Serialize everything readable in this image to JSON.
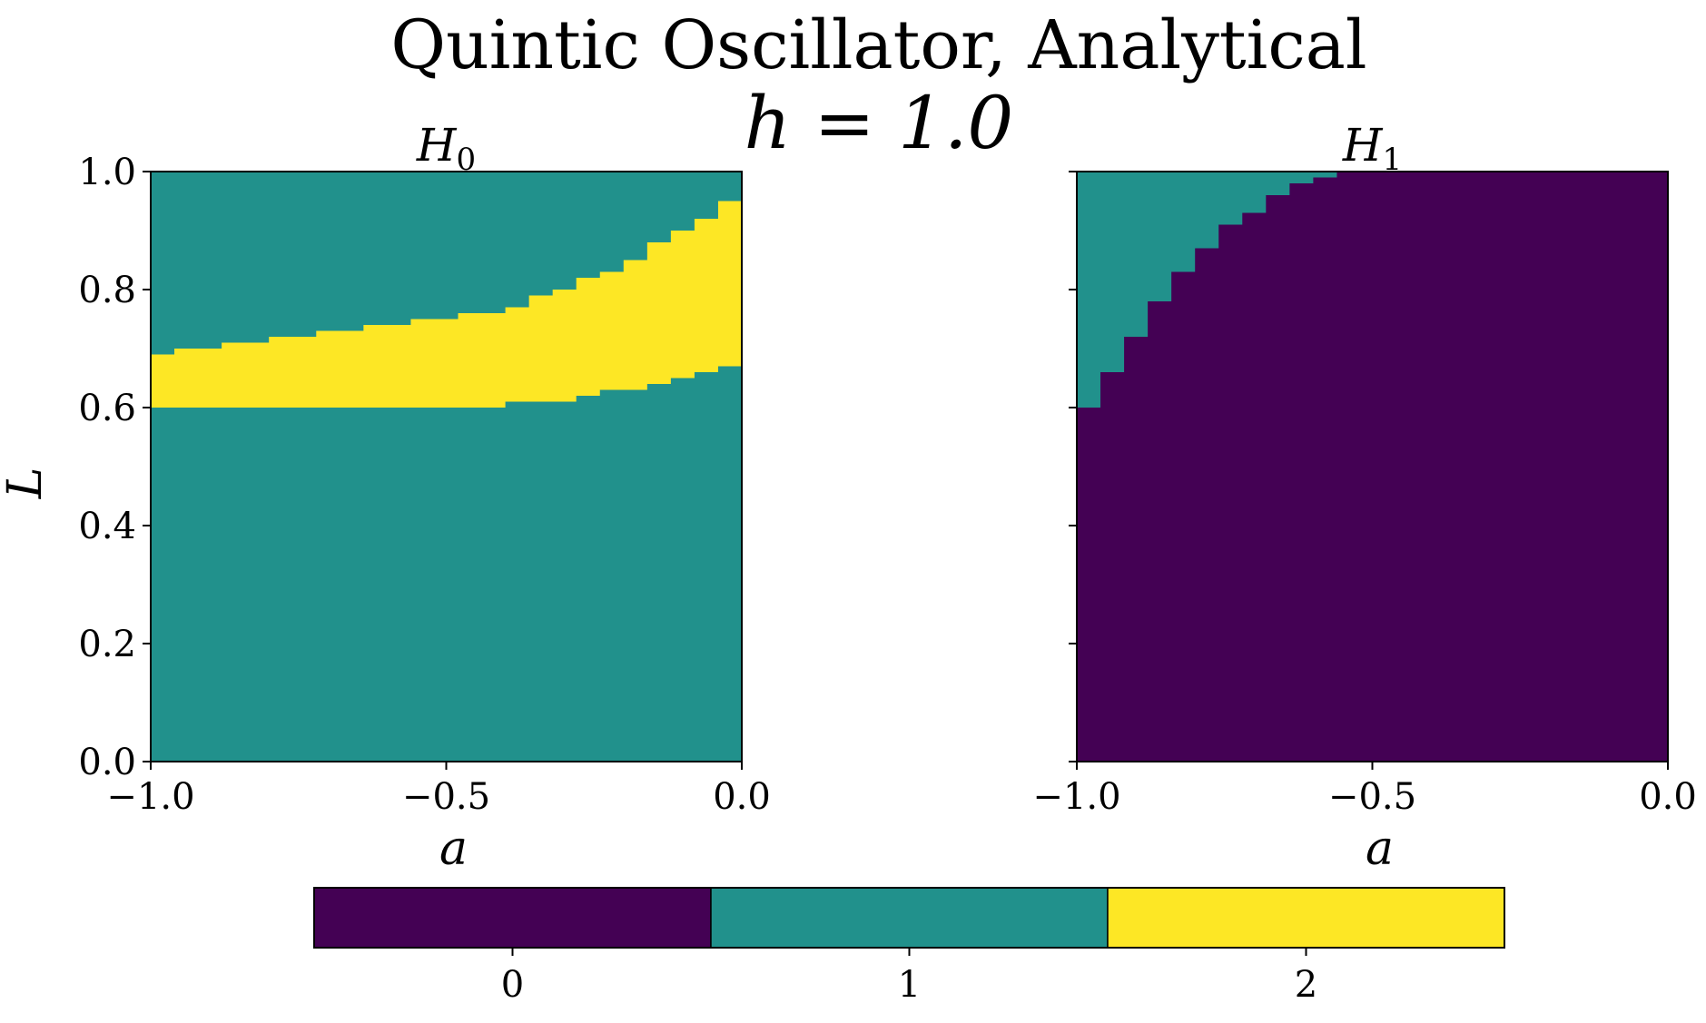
{
  "figure": {
    "title_line1": "Quintic Oscillator, Analytical",
    "title_line2": "h = 1.0"
  },
  "colors": {
    "0": "#440154",
    "1": "#21918c",
    "2": "#fde725"
  },
  "chart_data": [
    {
      "type": "heatmap",
      "title_main": "H",
      "title_sub": "0",
      "xlabel": "a",
      "ylabel": "L",
      "xlim": [
        -1.0,
        0.0
      ],
      "ylim": [
        0.0,
        1.0
      ],
      "xticks": [
        "−1.0",
        "−0.5",
        "0.0"
      ],
      "yticks": [
        "0.0",
        "0.2",
        "0.4",
        "0.6",
        "0.8",
        "1.0"
      ],
      "grid": false,
      "background_value": 1,
      "bands": [
        {
          "value": 2,
          "a": [
            -1.0,
            -0.96,
            -0.92,
            -0.88,
            -0.84,
            -0.8,
            -0.76,
            -0.72,
            -0.68,
            -0.64,
            -0.6,
            -0.56,
            -0.52,
            -0.48,
            -0.44,
            -0.4,
            -0.36,
            -0.32,
            -0.28,
            -0.24,
            -0.2,
            -0.16,
            -0.12,
            -0.08,
            -0.04
          ],
          "L_lower": [
            0.6,
            0.6,
            0.6,
            0.6,
            0.6,
            0.6,
            0.6,
            0.6,
            0.6,
            0.6,
            0.6,
            0.6,
            0.6,
            0.6,
            0.6,
            0.61,
            0.61,
            0.61,
            0.62,
            0.63,
            0.63,
            0.64,
            0.65,
            0.66,
            0.67
          ],
          "L_upper": [
            0.69,
            0.7,
            0.7,
            0.71,
            0.71,
            0.72,
            0.72,
            0.73,
            0.73,
            0.74,
            0.74,
            0.75,
            0.75,
            0.76,
            0.76,
            0.77,
            0.79,
            0.8,
            0.82,
            0.83,
            0.85,
            0.88,
            0.9,
            0.92,
            0.95
          ],
          "a_end": 0.0,
          "L_lower_end": 0.68,
          "L_upper_end": 1.0
        }
      ]
    },
    {
      "type": "heatmap",
      "title_main": "H",
      "title_sub": "1",
      "xlabel": "a",
      "ylabel": "",
      "xlim": [
        -1.0,
        0.0
      ],
      "ylim": [
        0.0,
        1.0
      ],
      "xticks": [
        "−1.0",
        "−0.5",
        "0.0"
      ],
      "yticks": [],
      "grid": false,
      "background_value": 0,
      "region": {
        "value": 1,
        "a": [
          -1.0,
          -0.96,
          -0.92,
          -0.88,
          -0.84,
          -0.8,
          -0.76,
          -0.72,
          -0.68,
          -0.64,
          -0.6
        ],
        "L_boundary": [
          0.6,
          0.66,
          0.72,
          0.78,
          0.83,
          0.87,
          0.91,
          0.93,
          0.96,
          0.98,
          0.99
        ],
        "a_end": -0.56
      }
    }
  ],
  "colorbar": {
    "values": [
      0,
      1,
      2
    ],
    "labels": [
      "0",
      "1",
      "2"
    ],
    "orientation": "horizontal",
    "placement": "bottom"
  }
}
